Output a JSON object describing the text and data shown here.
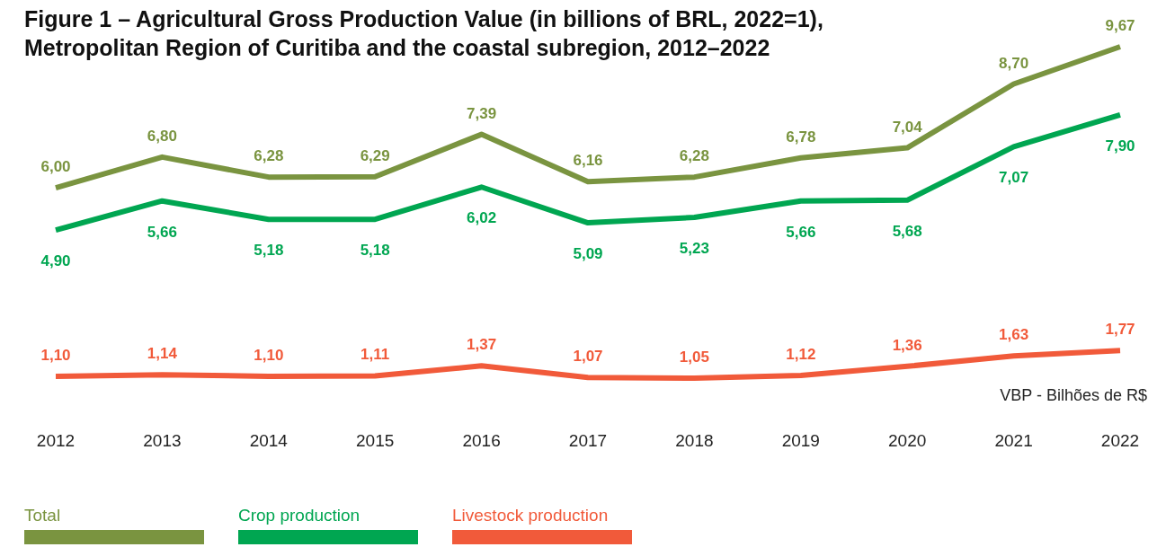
{
  "chart_data": {
    "type": "line",
    "title": "Figure 1 – Agricultural Gross Production Value (in billions of BRL, 2022=1), Metropolitan Region of Curitiba and the coastal subregion, 2012–2022",
    "annotations": [
      "VBP - Bilhões de R$"
    ],
    "categories": [
      "2012",
      "2013",
      "2014",
      "2015",
      "2016",
      "2017",
      "2018",
      "2019",
      "2020",
      "2021",
      "2022"
    ],
    "legend": "bottom",
    "grid": false,
    "marker": "none",
    "line_style": "solid",
    "series": [
      {
        "name": "Total",
        "color": "#7a9440",
        "values": [
          6.0,
          6.8,
          6.28,
          6.29,
          7.39,
          6.16,
          6.28,
          6.78,
          7.04,
          8.7,
          9.67
        ],
        "value_labels": [
          "6,00",
          "6,80",
          "6,28",
          "6,29",
          "7,39",
          "6,16",
          "6,28",
          "6,78",
          "7,04",
          "8,70",
          "9,67"
        ]
      },
      {
        "name": "Crop production",
        "color": "#00a651",
        "values": [
          4.9,
          5.66,
          5.18,
          5.18,
          6.02,
          5.09,
          5.23,
          5.66,
          5.68,
          7.07,
          7.9
        ],
        "value_labels": [
          "4,90",
          "5,66",
          "5,18",
          "5,18",
          "6,02",
          "5,09",
          "5,23",
          "5,66",
          "5,68",
          "7,07",
          "7,90"
        ]
      },
      {
        "name": "Livestock production",
        "color": "#f15a3a",
        "values": [
          1.1,
          1.14,
          1.1,
          1.11,
          1.37,
          1.07,
          1.05,
          1.12,
          1.36,
          1.63,
          1.77
        ],
        "value_labels": [
          "1,10",
          "1,14",
          "1,10",
          "1,11",
          "1,37",
          "1,07",
          "1,05",
          "1,12",
          "1,36",
          "1,63",
          "1,77"
        ]
      }
    ]
  }
}
